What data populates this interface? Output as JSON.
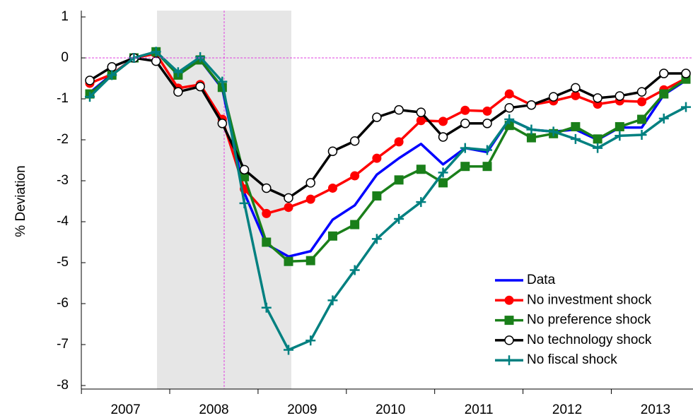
{
  "chart_data": {
    "type": "line",
    "ylabel": "% Deviation",
    "categories": [
      "2007",
      null,
      null,
      null,
      "2008",
      null,
      null,
      null,
      "2009",
      null,
      null,
      null,
      "2010",
      null,
      null,
      null,
      "2011",
      null,
      null,
      null,
      "2012",
      null,
      null,
      null,
      "2013",
      null,
      null,
      null
    ],
    "ylim": [
      -8,
      1
    ],
    "yticks": [
      -8,
      -7,
      -6,
      -5,
      -4,
      -3,
      -2,
      -1,
      0,
      1
    ],
    "grid": false,
    "legend": "lower right",
    "series": [
      {
        "name": "Data",
        "color": "#0000ff",
        "marker": "none",
        "values": [
          -0.85,
          -0.4,
          0,
          0.15,
          -0.38,
          -0.05,
          -0.75,
          -3.3,
          -4.55,
          -4.85,
          -4.72,
          -3.95,
          -3.6,
          -2.85,
          -2.45,
          -2.1,
          -2.6,
          -2.2,
          -2.3,
          -1.5,
          -1.75,
          -1.8,
          -1.75,
          -2.0,
          -1.7,
          -1.7,
          -0.9,
          -0.55
        ]
      },
      {
        "name": "No investment shock",
        "color": "#ff0000",
        "marker": "circle",
        "values": [
          -0.62,
          -0.4,
          0,
          0.1,
          -0.74,
          -0.65,
          -1.5,
          -3.2,
          -3.8,
          -3.65,
          -3.45,
          -3.18,
          -2.88,
          -2.45,
          -2.05,
          -1.53,
          -1.55,
          -1.28,
          -1.3,
          -0.88,
          -1.15,
          -1.05,
          -0.92,
          -1.13,
          -1.05,
          -1.07,
          -0.78,
          -0.5
        ]
      },
      {
        "name": "No preference shock",
        "color": "#1a7f1a",
        "marker": "square",
        "values": [
          -0.88,
          -0.42,
          0,
          0.15,
          -0.42,
          -0.05,
          -0.72,
          -2.9,
          -4.5,
          -4.97,
          -4.95,
          -4.35,
          -4.07,
          -3.37,
          -2.98,
          -2.72,
          -3.05,
          -2.65,
          -2.65,
          -1.65,
          -1.95,
          -1.85,
          -1.68,
          -1.98,
          -1.68,
          -1.5,
          -0.88,
          -0.52
        ]
      },
      {
        "name": "No technology shock",
        "color": "#000000",
        "marker": "open-circle",
        "values": [
          -0.55,
          -0.22,
          0,
          -0.08,
          -0.83,
          -0.7,
          -1.6,
          -2.73,
          -3.18,
          -3.42,
          -3.05,
          -2.28,
          -2.03,
          -1.45,
          -1.27,
          -1.33,
          -1.93,
          -1.6,
          -1.6,
          -1.22,
          -1.15,
          -0.95,
          -0.73,
          -0.98,
          -0.93,
          -0.83,
          -0.38,
          -0.38
        ]
      },
      {
        "name": "No fiscal shock",
        "color": "#008080",
        "marker": "plus",
        "values": [
          -0.95,
          -0.42,
          0,
          0.15,
          -0.35,
          0.02,
          -0.58,
          -3.55,
          -6.1,
          -7.13,
          -6.9,
          -5.92,
          -5.18,
          -4.42,
          -3.93,
          -3.52,
          -2.8,
          -2.2,
          -2.25,
          -1.5,
          -1.75,
          -1.8,
          -1.98,
          -2.2,
          -1.9,
          -1.88,
          -1.48,
          -1.2
        ]
      }
    ]
  }
}
